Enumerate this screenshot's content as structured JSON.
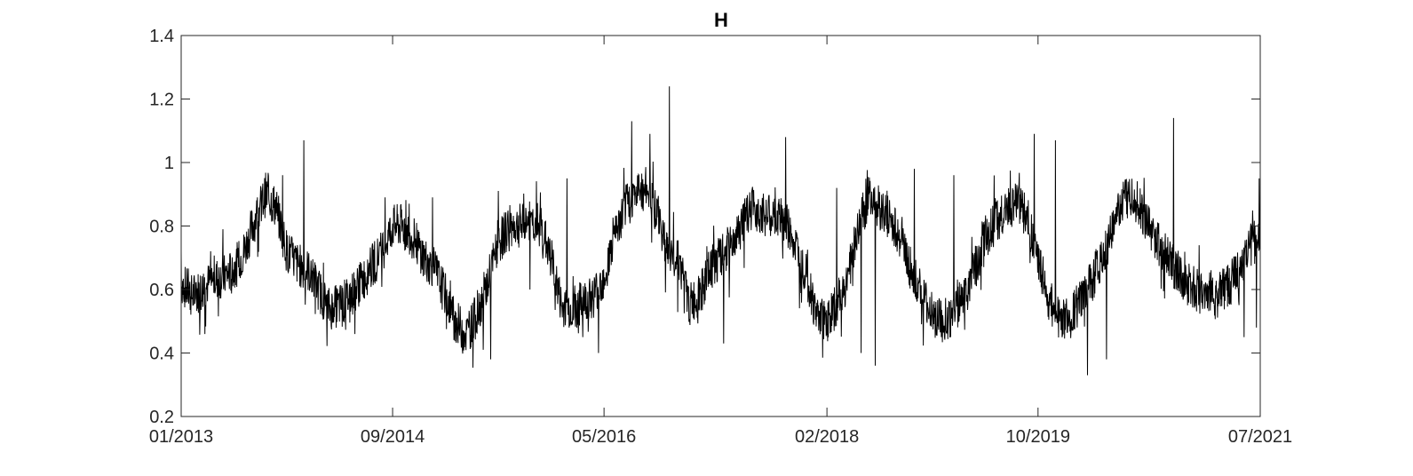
{
  "chart_data": {
    "type": "line",
    "title": "H",
    "xlabel": "",
    "ylabel": "",
    "x_start": "2013-01-01",
    "x_end": "2021-07-01",
    "ylim": [
      0.2,
      1.4
    ],
    "yticks": [
      0.2,
      0.4,
      0.6,
      0.8,
      1,
      1.2,
      1.4
    ],
    "ytick_labels": [
      "0.2",
      "0.4",
      "0.6",
      "0.8",
      "1",
      "1.2",
      "1.4"
    ],
    "xticks": [
      "2013-01-01",
      "2014-09-01",
      "2016-05-01",
      "2018-02-01",
      "2019-10-01",
      "2021-07-01"
    ],
    "xtick_labels": [
      "01/2013",
      "09/2014",
      "05/2016",
      "02/2018",
      "10/2019",
      "07/2021"
    ],
    "grid": false,
    "line_color": "#000000",
    "series": [
      {
        "x": [
          "2013-01-01",
          "2013-02-01",
          "2013-03-01",
          "2013-04-01",
          "2013-05-01",
          "2013-06-01",
          "2013-07-01",
          "2013-08-01",
          "2013-09-01",
          "2013-10-01",
          "2013-11-01",
          "2013-12-01",
          "2014-01-01",
          "2014-02-01",
          "2014-03-01",
          "2014-04-01",
          "2014-05-01",
          "2014-06-01",
          "2014-07-01",
          "2014-08-01",
          "2014-09-01",
          "2014-10-01",
          "2014-11-01",
          "2014-12-01",
          "2015-01-01",
          "2015-02-01",
          "2015-03-01",
          "2015-04-01",
          "2015-05-01",
          "2015-06-01",
          "2015-07-01",
          "2015-08-01",
          "2015-09-01",
          "2015-10-01",
          "2015-11-01",
          "2015-12-01",
          "2016-01-01",
          "2016-02-01",
          "2016-03-01",
          "2016-04-01",
          "2016-05-01",
          "2016-06-01",
          "2016-07-01",
          "2016-08-01",
          "2016-09-01",
          "2016-10-01",
          "2016-11-01",
          "2016-12-01",
          "2017-01-01",
          "2017-02-01",
          "2017-03-01",
          "2017-04-01",
          "2017-05-01",
          "2017-06-01",
          "2017-07-01",
          "2017-08-01",
          "2017-09-01",
          "2017-10-01",
          "2017-11-01",
          "2017-12-01",
          "2018-01-01",
          "2018-02-01",
          "2018-03-01",
          "2018-04-01",
          "2018-05-01",
          "2018-06-01",
          "2018-07-01",
          "2018-08-01",
          "2018-09-01",
          "2018-10-01",
          "2018-11-01",
          "2018-12-01",
          "2019-01-01",
          "2019-02-01",
          "2019-03-01",
          "2019-04-01",
          "2019-05-01",
          "2019-06-01",
          "2019-07-01",
          "2019-08-01",
          "2019-09-01",
          "2019-10-01",
          "2019-11-01",
          "2019-12-01",
          "2020-01-01",
          "2020-02-01",
          "2020-03-01",
          "2020-04-01",
          "2020-05-01",
          "2020-06-01",
          "2020-07-01",
          "2020-08-01",
          "2020-09-01",
          "2020-10-01",
          "2020-11-01",
          "2020-12-01",
          "2021-01-01",
          "2021-02-01",
          "2021-03-01",
          "2021-04-01",
          "2021-05-01",
          "2021-06-01",
          "2021-07-01"
        ],
        "y": [
          0.62,
          0.58,
          0.6,
          0.63,
          0.64,
          0.66,
          0.72,
          0.82,
          0.9,
          0.86,
          0.72,
          0.68,
          0.66,
          0.6,
          0.54,
          0.55,
          0.58,
          0.62,
          0.67,
          0.72,
          0.8,
          0.8,
          0.76,
          0.7,
          0.66,
          0.58,
          0.5,
          0.46,
          0.52,
          0.62,
          0.74,
          0.8,
          0.8,
          0.82,
          0.8,
          0.7,
          0.54,
          0.54,
          0.56,
          0.58,
          0.64,
          0.76,
          0.86,
          0.9,
          0.92,
          0.84,
          0.72,
          0.7,
          0.55,
          0.58,
          0.66,
          0.7,
          0.74,
          0.8,
          0.86,
          0.84,
          0.82,
          0.82,
          0.74,
          0.66,
          0.52,
          0.5,
          0.55,
          0.64,
          0.78,
          0.9,
          0.86,
          0.82,
          0.76,
          0.66,
          0.58,
          0.52,
          0.5,
          0.52,
          0.58,
          0.66,
          0.76,
          0.82,
          0.84,
          0.88,
          0.82,
          0.7,
          0.56,
          0.5,
          0.52,
          0.56,
          0.62,
          0.7,
          0.78,
          0.88,
          0.9,
          0.82,
          0.76,
          0.72,
          0.66,
          0.62,
          0.6,
          0.6,
          0.58,
          0.62,
          0.66,
          0.74,
          0.76
        ],
        "spikes": [
          {
            "x": "2013-01-01",
            "y": 0.72
          },
          {
            "x": "2013-03-10",
            "y": 0.46
          },
          {
            "x": "2013-05-01",
            "y": 0.79
          },
          {
            "x": "2013-10-20",
            "y": 0.96
          },
          {
            "x": "2013-12-20",
            "y": 1.07
          },
          {
            "x": "2014-05-15",
            "y": 0.46
          },
          {
            "x": "2014-08-10",
            "y": 0.89
          },
          {
            "x": "2014-12-25",
            "y": 0.89
          },
          {
            "x": "2015-06-10",
            "y": 0.38
          },
          {
            "x": "2015-05-20",
            "y": 0.41
          },
          {
            "x": "2015-10-01",
            "y": 0.6
          },
          {
            "x": "2016-01-15",
            "y": 0.95
          },
          {
            "x": "2016-03-01",
            "y": 0.45
          },
          {
            "x": "2016-04-15",
            "y": 0.4
          },
          {
            "x": "2016-07-20",
            "y": 1.13
          },
          {
            "x": "2016-09-10",
            "y": 1.09
          },
          {
            "x": "2016-11-05",
            "y": 1.24
          },
          {
            "x": "2017-04-10",
            "y": 0.43
          },
          {
            "x": "2017-10-05",
            "y": 1.08
          },
          {
            "x": "2018-03-01",
            "y": 0.92
          },
          {
            "x": "2018-05-10",
            "y": 0.4
          },
          {
            "x": "2018-06-20",
            "y": 0.36
          },
          {
            "x": "2018-10-10",
            "y": 0.98
          },
          {
            "x": "2019-02-01",
            "y": 0.96
          },
          {
            "x": "2019-09-20",
            "y": 1.09
          },
          {
            "x": "2019-11-20",
            "y": 1.07
          },
          {
            "x": "2020-02-20",
            "y": 0.33
          },
          {
            "x": "2020-04-15",
            "y": 0.38
          },
          {
            "x": "2020-10-25",
            "y": 1.14
          },
          {
            "x": "2021-05-15",
            "y": 0.45
          },
          {
            "x": "2021-06-20",
            "y": 0.48
          },
          {
            "x": "2021-06-28",
            "y": 0.95
          }
        ]
      }
    ]
  }
}
